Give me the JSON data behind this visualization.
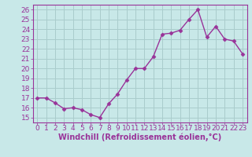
{
  "x": [
    0,
    1,
    2,
    3,
    4,
    5,
    6,
    7,
    8,
    9,
    10,
    11,
    12,
    13,
    14,
    15,
    16,
    17,
    18,
    19,
    20,
    21,
    22,
    23
  ],
  "y": [
    17.0,
    17.0,
    16.5,
    15.9,
    16.0,
    15.8,
    15.3,
    15.0,
    16.4,
    17.4,
    18.8,
    20.0,
    20.0,
    21.2,
    23.5,
    23.6,
    23.9,
    25.0,
    26.0,
    23.2,
    24.3,
    23.0,
    22.8,
    21.5
  ],
  "line_color": "#993399",
  "marker": "D",
  "marker_size": 2.5,
  "background_color": "#c8e8e8",
  "grid_color": "#aacccc",
  "xlabel": "Windchill (Refroidissement éolien,°C)",
  "ylabel": "",
  "ylim": [
    14.5,
    26.5
  ],
  "yticks": [
    15,
    16,
    17,
    18,
    19,
    20,
    21,
    22,
    23,
    24,
    25,
    26
  ],
  "xticks": [
    0,
    1,
    2,
    3,
    4,
    5,
    6,
    7,
    8,
    9,
    10,
    11,
    12,
    13,
    14,
    15,
    16,
    17,
    18,
    19,
    20,
    21,
    22,
    23
  ],
  "xlabel_color": "#993399",
  "tick_color": "#993399",
  "xlabel_fontsize": 7.0,
  "tick_fontsize": 6.5,
  "line_width": 1.0,
  "spine_color": "#993399"
}
